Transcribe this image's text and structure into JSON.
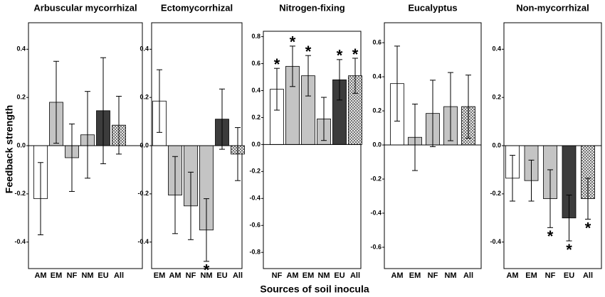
{
  "ylabel": "Feedback strength",
  "xlabel": "Sources of soil inocula",
  "chart_data": [
    {
      "type": "bar",
      "title": "Arbuscular mycorrhizal",
      "categories": [
        "AM",
        "EM",
        "NF",
        "NM",
        "EU",
        "All"
      ],
      "values": [
        -0.22,
        0.18,
        -0.05,
        0.045,
        0.145,
        0.085
      ],
      "errors": [
        0.15,
        0.17,
        0.14,
        0.18,
        0.22,
        0.12
      ],
      "significance": [
        null,
        null,
        null,
        null,
        null,
        null
      ],
      "colors": [
        "#ffffff",
        "#c4c4c4",
        "#c4c4c4",
        "#c4c4c4",
        "#3c3c3c",
        "#ffffff"
      ],
      "hatched": [
        false,
        false,
        false,
        false,
        false,
        true
      ],
      "ylim": [
        -0.51,
        0.51
      ],
      "yticks": [
        -0.4,
        -0.2,
        {
          "value": 0,
          "label": "0.0"
        },
        0.2,
        0.4
      ]
    },
    {
      "type": "bar",
      "title": "Ectomycorrhizal",
      "categories": [
        "EM",
        "AM",
        "NF",
        "NM",
        "EU",
        "All"
      ],
      "values": [
        0.185,
        -0.205,
        -0.25,
        -0.35,
        0.11,
        -0.035
      ],
      "errors": [
        0.13,
        0.16,
        0.14,
        0.13,
        0.125,
        0.11
      ],
      "significance": [
        null,
        null,
        null,
        "*",
        null,
        null
      ],
      "colors": [
        "#ffffff",
        "#c4c4c4",
        "#c4c4c4",
        "#c4c4c4",
        "#3c3c3c",
        "#ffffff"
      ],
      "hatched": [
        false,
        false,
        false,
        false,
        false,
        true
      ],
      "ylim": [
        -0.51,
        0.51
      ],
      "yticks": [
        -0.4,
        -0.2,
        {
          "value": 0,
          "label": "0.0"
        },
        0.2,
        0.4
      ]
    },
    {
      "type": "bar",
      "title": "Nitrogen-fixing",
      "categories": [
        "NF",
        "AM",
        "EM",
        "NM",
        "EU",
        "All"
      ],
      "values": [
        0.41,
        0.58,
        0.51,
        0.19,
        0.48,
        0.51
      ],
      "errors": [
        0.155,
        0.15,
        0.15,
        0.16,
        0.15,
        0.13
      ],
      "significance": [
        "*",
        "*",
        "*",
        null,
        "*",
        "*"
      ],
      "colors": [
        "#ffffff",
        "#c4c4c4",
        "#c4c4c4",
        "#c4c4c4",
        "#3c3c3c",
        "#ffffff"
      ],
      "hatched": [
        false,
        false,
        false,
        false,
        false,
        true
      ],
      "ylim": [
        -0.92,
        0.84
      ],
      "yticks": [
        -0.8,
        -0.6,
        -0.4,
        -0.2,
        {
          "value": 0,
          "label": "0.0"
        },
        0.2,
        0.4,
        0.6,
        0.8
      ]
    },
    {
      "type": "bar",
      "title": "Eucalyptus",
      "categories": [
        "AM",
        "EM",
        "NF",
        "NM",
        "All"
      ],
      "values": [
        0.36,
        0.045,
        0.185,
        0.225,
        0.225
      ],
      "errors": [
        0.22,
        0.195,
        0.195,
        0.2,
        0.185
      ],
      "significance": [
        null,
        null,
        null,
        null,
        null
      ],
      "colors": [
        "#ffffff",
        "#c4c4c4",
        "#c4c4c4",
        "#c4c4c4",
        "#ffffff"
      ],
      "hatched": [
        false,
        false,
        false,
        false,
        true
      ],
      "ylim": [
        -0.725,
        0.717
      ],
      "yticks": [
        -0.6,
        -0.4,
        -0.2,
        {
          "value": 0,
          "label": "0.0"
        },
        0.2,
        0.4,
        0.6
      ]
    },
    {
      "type": "bar",
      "title": "Non-mycorrhizal",
      "categories": [
        "AM",
        "EM",
        "NF",
        "EU",
        "All"
      ],
      "values": [
        -0.135,
        -0.145,
        -0.22,
        -0.3,
        -0.22
      ],
      "errors": [
        0.095,
        0.085,
        0.12,
        0.095,
        0.085
      ],
      "significance": [
        null,
        null,
        "*",
        "*",
        "*"
      ],
      "colors": [
        "#ffffff",
        "#c4c4c4",
        "#c4c4c4",
        "#3c3c3c",
        "#ffffff"
      ],
      "hatched": [
        false,
        false,
        false,
        false,
        true
      ],
      "ylim": [
        -0.51,
        0.51
      ],
      "yticks": [
        -0.4,
        -0.2,
        {
          "value": 0,
          "label": "0.0"
        },
        0.2,
        0.4
      ]
    }
  ]
}
